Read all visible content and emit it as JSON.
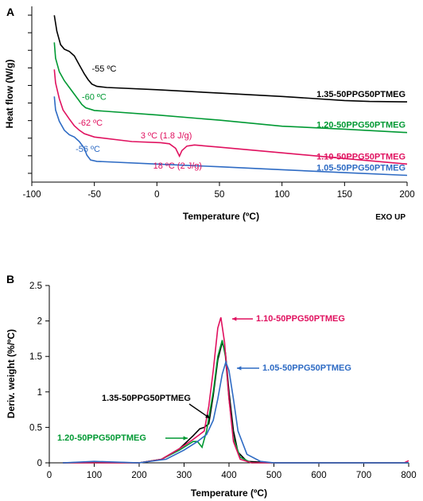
{
  "chart_data": [
    {
      "type": "line",
      "panel": "A",
      "xlabel": "Temperature (ºC)",
      "ylabel": "Heat flow (W/g)",
      "corner_note": "EXO UP",
      "xlim": [
        -100,
        200
      ],
      "xticks": [
        "-100",
        "-50",
        "0",
        "50",
        "100",
        "150",
        "200"
      ],
      "y_tick_count": 10,
      "series": [
        {
          "name": "1.35-50PPG50PTMEG",
          "color": "#000000",
          "points": [
            [
              -82,
              9.2
            ],
            [
              -80,
              8.5
            ],
            [
              -77,
              7.9
            ],
            [
              -74,
              7.7
            ],
            [
              -70,
              7.6
            ],
            [
              -66,
              7.4
            ],
            [
              -62,
              7.0
            ],
            [
              -58,
              6.6
            ],
            [
              -55,
              6.35
            ],
            [
              -52,
              6.15
            ],
            [
              -48,
              6.05
            ],
            [
              -40,
              6.0
            ],
            [
              0,
              5.9
            ],
            [
              50,
              5.75
            ],
            [
              100,
              5.6
            ],
            [
              150,
              5.42
            ],
            [
              170,
              5.38
            ],
            [
              200,
              5.36
            ]
          ]
        },
        {
          "name": "1.20-50PPG50PTMEG",
          "color": "#009933",
          "points": [
            [
              -82,
              8.0
            ],
            [
              -81,
              7.3
            ],
            [
              -78,
              6.7
            ],
            [
              -74,
              6.3
            ],
            [
              -70,
              6.0
            ],
            [
              -66,
              5.7
            ],
            [
              -62,
              5.4
            ],
            [
              -60,
              5.25
            ],
            [
              -57,
              5.1
            ],
            [
              -50,
              4.98
            ],
            [
              0,
              4.78
            ],
            [
              50,
              4.55
            ],
            [
              100,
              4.28
            ],
            [
              150,
              4.15
            ],
            [
              200,
              4.0
            ]
          ]
        },
        {
          "name": "1.10-50PPG50PTMEG",
          "color": "#e0115f",
          "points": [
            [
              -82,
              6.8
            ],
            [
              -81,
              6.2
            ],
            [
              -78,
              5.5
            ],
            [
              -75,
              5.0
            ],
            [
              -70,
              4.6
            ],
            [
              -66,
              4.3
            ],
            [
              -62,
              4.1
            ],
            [
              -58,
              3.95
            ],
            [
              -50,
              3.8
            ],
            [
              -20,
              3.6
            ],
            [
              3,
              3.55
            ],
            [
              10,
              3.5
            ],
            [
              15,
              3.3
            ],
            [
              18,
              2.95
            ],
            [
              20,
              3.2
            ],
            [
              24,
              3.4
            ],
            [
              30,
              3.45
            ],
            [
              50,
              3.35
            ],
            [
              100,
              3.1
            ],
            [
              150,
              2.85
            ],
            [
              200,
              2.6
            ]
          ]
        },
        {
          "name": "1.05-50PPG50PTMEG",
          "color": "#2e6bc4",
          "points": [
            [
              -82,
              5.6
            ],
            [
              -81,
              5.0
            ],
            [
              -78,
              4.5
            ],
            [
              -74,
              4.1
            ],
            [
              -70,
              3.9
            ],
            [
              -66,
              3.8
            ],
            [
              -62,
              3.6
            ],
            [
              -58,
              3.3
            ],
            [
              -56,
              3.0
            ],
            [
              -53,
              2.78
            ],
            [
              -48,
              2.72
            ],
            [
              0,
              2.6
            ],
            [
              50,
              2.48
            ],
            [
              100,
              2.35
            ],
            [
              150,
              2.22
            ],
            [
              200,
              2.1
            ]
          ]
        }
      ],
      "annotations": [
        {
          "text": "-55 ºC",
          "color": "#000000",
          "x": -52,
          "y": 6.7
        },
        {
          "text": "-60 ºC",
          "color": "#009933",
          "x": -60,
          "y": 5.45
        },
        {
          "text": "-62 ºC",
          "color": "#e0115f",
          "x": -63,
          "y": 4.3
        },
        {
          "text": "3 ºC (1.8 J/g)",
          "color": "#e0115f",
          "x": -13,
          "y": 3.75
        },
        {
          "text": "18 ºC (2 J/g)",
          "color": "#e0115f",
          "x": -3,
          "y": 2.4
        },
        {
          "text": "-56 ºC",
          "color": "#2e6bc4",
          "x": -65,
          "y": 3.15
        }
      ]
    },
    {
      "type": "line",
      "panel": "B",
      "xlabel": "Temperature (ºC)",
      "ylabel": "Deriv. weight (%/ºC)",
      "xlim": [
        0,
        800
      ],
      "ylim": [
        0,
        2.5
      ],
      "xticks": [
        "0",
        "100",
        "200",
        "300",
        "400",
        "500",
        "600",
        "700",
        "800"
      ],
      "yticks": [
        "0",
        "0.5",
        "1",
        "1.5",
        "2",
        "2.5"
      ],
      "series": [
        {
          "name": "1.35-50PPG50PTMEG",
          "color": "#000000",
          "points": [
            [
              30,
              0
            ],
            [
              100,
              0.01
            ],
            [
              200,
              0.0
            ],
            [
              250,
              0.05
            ],
            [
              290,
              0.2
            ],
            [
              320,
              0.38
            ],
            [
              335,
              0.48
            ],
            [
              345,
              0.5
            ],
            [
              355,
              0.55
            ],
            [
              365,
              0.95
            ],
            [
              375,
              1.45
            ],
            [
              385,
              1.7
            ],
            [
              392,
              1.55
            ],
            [
              400,
              1.0
            ],
            [
              410,
              0.45
            ],
            [
              420,
              0.15
            ],
            [
              440,
              0.02
            ],
            [
              500,
              0
            ],
            [
              800,
              0
            ]
          ]
        },
        {
          "name": "1.20-50PPG50PTMEG",
          "color": "#009933",
          "points": [
            [
              30,
              0
            ],
            [
              200,
              0
            ],
            [
              250,
              0.05
            ],
            [
              290,
              0.18
            ],
            [
              320,
              0.3
            ],
            [
              330,
              0.3
            ],
            [
              340,
              0.22
            ],
            [
              350,
              0.45
            ],
            [
              365,
              1.0
            ],
            [
              375,
              1.5
            ],
            [
              385,
              1.73
            ],
            [
              392,
              1.5
            ],
            [
              400,
              0.9
            ],
            [
              410,
              0.35
            ],
            [
              425,
              0.08
            ],
            [
              450,
              0
            ],
            [
              800,
              0
            ]
          ]
        },
        {
          "name": "1.10-50PPG50PTMEG",
          "color": "#e0115f",
          "points": [
            [
              30,
              0
            ],
            [
              200,
              0
            ],
            [
              250,
              0.05
            ],
            [
              290,
              0.2
            ],
            [
              320,
              0.33
            ],
            [
              335,
              0.4
            ],
            [
              345,
              0.45
            ],
            [
              355,
              0.8
            ],
            [
              365,
              1.3
            ],
            [
              375,
              1.9
            ],
            [
              382,
              2.05
            ],
            [
              390,
              1.7
            ],
            [
              400,
              0.9
            ],
            [
              410,
              0.3
            ],
            [
              425,
              0.05
            ],
            [
              450,
              0
            ],
            [
              790,
              0
            ],
            [
              800,
              0.03
            ]
          ]
        },
        {
          "name": "1.05-50PPG50PTMEG",
          "color": "#2e6bc4",
          "points": [
            [
              30,
              0
            ],
            [
              100,
              0.02
            ],
            [
              200,
              0.0
            ],
            [
              260,
              0.05
            ],
            [
              300,
              0.18
            ],
            [
              330,
              0.3
            ],
            [
              350,
              0.4
            ],
            [
              365,
              0.6
            ],
            [
              375,
              0.9
            ],
            [
              385,
              1.25
            ],
            [
              393,
              1.42
            ],
            [
              400,
              1.3
            ],
            [
              410,
              0.9
            ],
            [
              420,
              0.45
            ],
            [
              440,
              0.12
            ],
            [
              470,
              0.02
            ],
            [
              500,
              0
            ],
            [
              800,
              0
            ]
          ]
        }
      ]
    }
  ],
  "labels": {
    "panel_a": "A",
    "panel_b": "B"
  }
}
